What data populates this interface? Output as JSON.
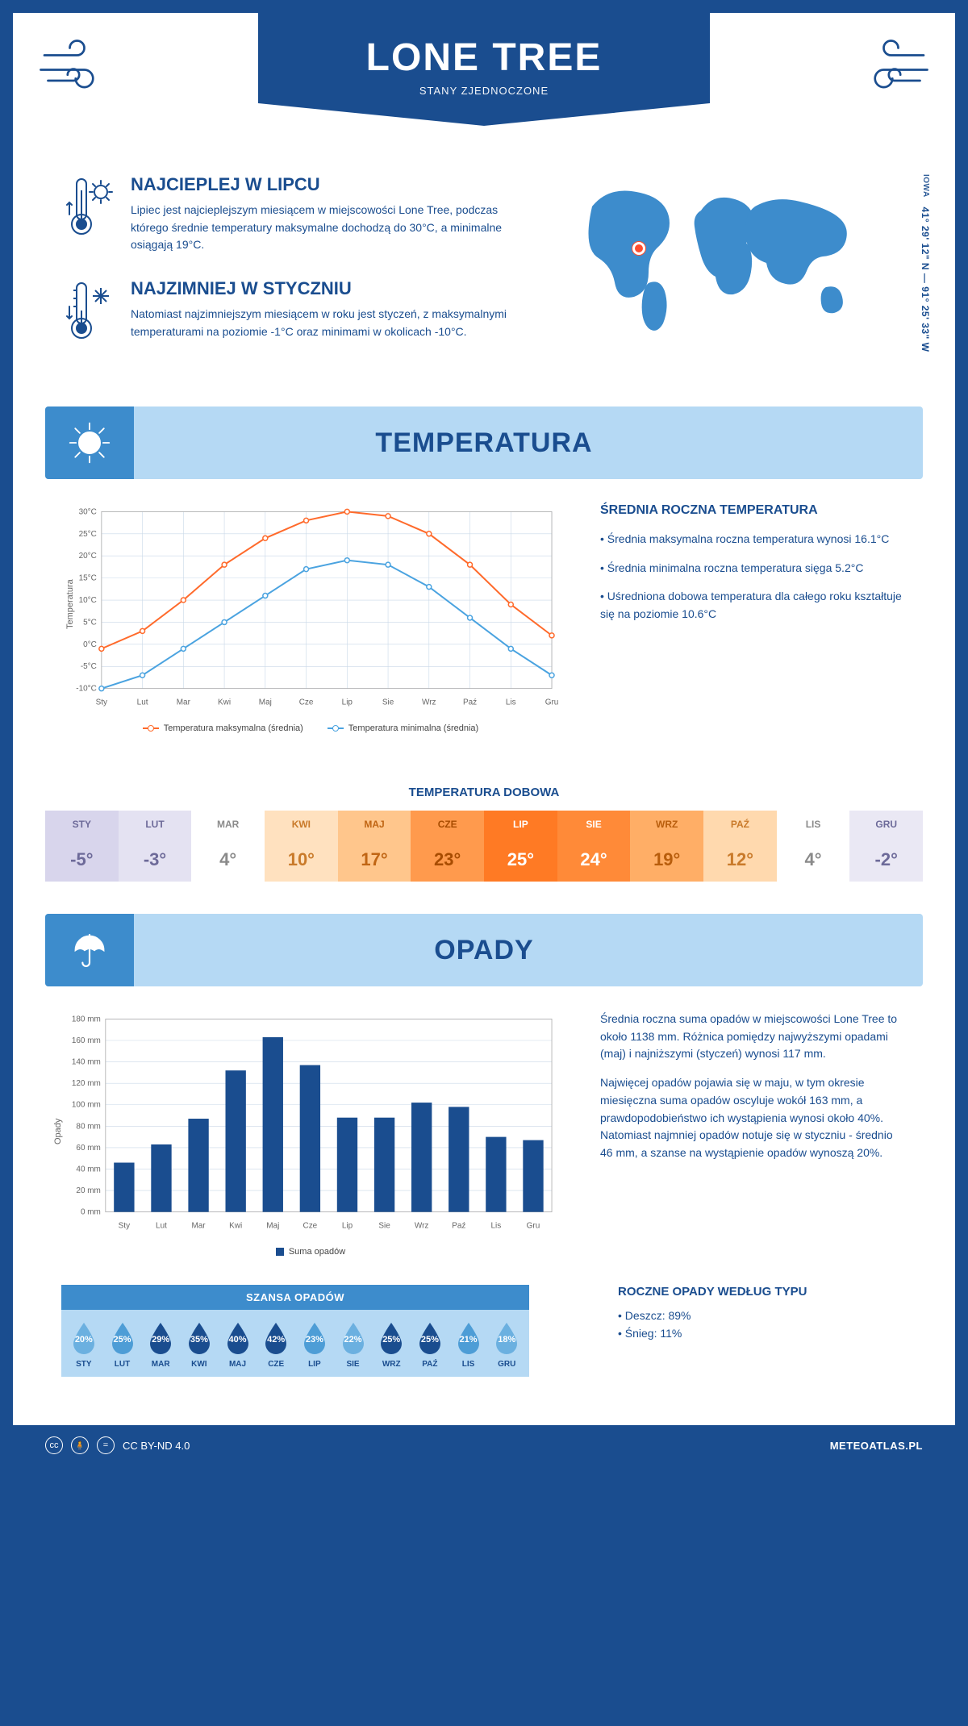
{
  "colors": {
    "primary": "#1a4d8f",
    "lightBlue": "#b5d9f4",
    "midBlue": "#3d8ccc",
    "orange": "#ff6a2b",
    "chartBlue": "#4aa3e0",
    "chartOrange": "#ff6a2b",
    "marker": "#ff4d2e",
    "grid": "#c9d8e8"
  },
  "header": {
    "title": "LONE TREE",
    "subtitle": "STANY ZJEDNOCZONE"
  },
  "intro": {
    "hot": {
      "heading": "NAJCIEPLEJ W LIPCU",
      "body": "Lipiec jest najcieplejszym miesiącem w miejscowości Lone Tree, podczas którego średnie temperatury maksymalne dochodzą do 30°C, a minimalne osiągają 19°C."
    },
    "cold": {
      "heading": "NAJZIMNIEJ W STYCZNIU",
      "body": "Natomiast najzimniejszym miesiącem w roku jest styczeń, z maksymalnymi temperaturami na poziomie -1°C oraz minimami w okolicach -10°C."
    },
    "region": "IOWA",
    "coords": "41° 29' 12\" N — 91° 25' 33\" W"
  },
  "temperature": {
    "sectionTitle": "TEMPERATURA",
    "chart": {
      "type": "line",
      "months": [
        "Sty",
        "Lut",
        "Mar",
        "Kwi",
        "Maj",
        "Cze",
        "Lip",
        "Sie",
        "Wrz",
        "Paź",
        "Lis",
        "Gru"
      ],
      "seriesMax": {
        "label": "Temperatura maksymalna (średnia)",
        "color": "#ff6a2b",
        "values": [
          -1,
          3,
          10,
          18,
          24,
          28,
          30,
          29,
          25,
          18,
          9,
          2
        ]
      },
      "seriesMin": {
        "label": "Temperatura minimalna (średnia)",
        "color": "#4aa3e0",
        "values": [
          -10,
          -7,
          -1,
          5,
          11,
          17,
          19,
          18,
          13,
          6,
          -1,
          -7
        ]
      },
      "ylim": [
        -10,
        30
      ],
      "ytick_step": 5,
      "y_suffix": "°C",
      "ylabel": "Temperatura",
      "grid_color": "#c9d8e8",
      "label_fontsize": 10,
      "title_fontsize": 14
    },
    "stats": {
      "heading": "ŚREDNIA ROCZNA TEMPERATURA",
      "line1": "• Średnia maksymalna roczna temperatura wynosi 16.1°C",
      "line2": "• Średnia minimalna roczna temperatura sięga 5.2°C",
      "line3": "• Uśredniona dobowa temperatura dla całego roku kształtuje się na poziomie 10.6°C"
    },
    "daily": {
      "title": "TEMPERATURA DOBOWA",
      "months": [
        "STY",
        "LUT",
        "MAR",
        "KWI",
        "MAJ",
        "CZE",
        "LIP",
        "SIE",
        "WRZ",
        "PAŹ",
        "LIS",
        "GRU"
      ],
      "values": [
        "-5°",
        "-3°",
        "4°",
        "10°",
        "17°",
        "23°",
        "25°",
        "24°",
        "19°",
        "12°",
        "4°",
        "-2°"
      ],
      "cell_colors": [
        "#d8d5ec",
        "#e4e2f2",
        "#ffffff",
        "#ffe1bf",
        "#ffc68c",
        "#ff9a4d",
        "#ff7a24",
        "#ff8a38",
        "#ffae66",
        "#ffd9ae",
        "#ffffff",
        "#eae8f4"
      ],
      "text_colors": [
        "#6d6a99",
        "#6d6a99",
        "#8a8a8a",
        "#c97a2a",
        "#c06514",
        "#a84c00",
        "#ffffff",
        "#ffffff",
        "#b85d0c",
        "#c97a2a",
        "#8a8a8a",
        "#6d6a99"
      ]
    }
  },
  "precip": {
    "sectionTitle": "OPADY",
    "chart": {
      "type": "bar",
      "months": [
        "Sty",
        "Lut",
        "Mar",
        "Kwi",
        "Maj",
        "Cze",
        "Lip",
        "Sie",
        "Wrz",
        "Paź",
        "Lis",
        "Gru"
      ],
      "values": [
        46,
        63,
        87,
        132,
        163,
        137,
        88,
        88,
        102,
        98,
        70,
        67
      ],
      "bar_color": "#1a4d8f",
      "ylim": [
        0,
        180
      ],
      "ytick_step": 20,
      "y_suffix": " mm",
      "ylabel": "Opady",
      "legend_label": "Suma opadów",
      "grid_color": "#c9d8e8",
      "bar_width": 0.55
    },
    "body1": "Średnia roczna suma opadów w miejscowości Lone Tree to około 1138 mm. Różnica pomiędzy najwyższymi opadami (maj) i najniższymi (styczeń) wynosi 117 mm.",
    "body2": "Najwięcej opadów pojawia się w maju, w tym okresie miesięczna suma opadów oscyluje wokół 163 mm, a prawdopodobieństwo ich wystąpienia wynosi około 40%. Natomiast najmniej opadów notuje się w styczniu - średnio 46 mm, a szanse na wystąpienie opadów wynoszą 20%.",
    "chance": {
      "title": "SZANSA OPADÓW",
      "months": [
        "STY",
        "LUT",
        "MAR",
        "KWI",
        "MAJ",
        "CZE",
        "LIP",
        "SIE",
        "WRZ",
        "PAŹ",
        "LIS",
        "GRU"
      ],
      "values": [
        "20%",
        "25%",
        "29%",
        "35%",
        "40%",
        "42%",
        "23%",
        "22%",
        "25%",
        "25%",
        "21%",
        "18%"
      ],
      "drop_colors": [
        "#6bb0e0",
        "#4d9dd6",
        "#1a4d8f",
        "#1a4d8f",
        "#1a4d8f",
        "#1a4d8f",
        "#4d9dd6",
        "#6bb0e0",
        "#1a4d8f",
        "#1a4d8f",
        "#4d9dd6",
        "#6bb0e0"
      ]
    },
    "type": {
      "heading": "ROCZNE OPADY WEDŁUG TYPU",
      "rain": "• Deszcz: 89%",
      "snow": "• Śnieg: 11%"
    }
  },
  "footer": {
    "license": "CC BY-ND 4.0",
    "site": "METEOATLAS.PL"
  }
}
